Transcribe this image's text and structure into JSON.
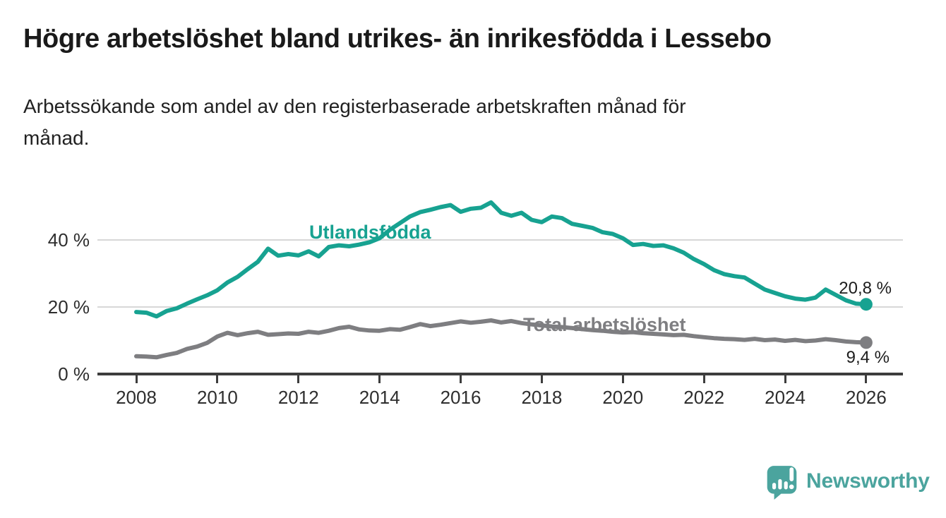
{
  "header": {
    "title": "Högre arbetslöshet bland utrikes- än inrikesfödda i Lessebo",
    "subtitle_line1": "Arbetssökande som andel av den registerbaserade arbetskraften månad för",
    "subtitle_line2": "månad."
  },
  "chart_data": {
    "type": "line",
    "title": "Högre arbetslöshet bland utrikes- än inrikesfödda i Lessebo",
    "subtitle": "Arbetssökande som andel av den registerbaserade arbetskraften månad för månad.",
    "xlabel": "",
    "ylabel": "",
    "x_unit": "year",
    "x_start": 2008,
    "x_step_years": 0.25,
    "xlim": [
      2007.0,
      2026.9
    ],
    "ylim": [
      0,
      52
    ],
    "grid": "horizontal",
    "legend_position": "inline-labels",
    "x_ticks": [
      "2008",
      "2010",
      "2012",
      "2014",
      "2016",
      "2018",
      "2020",
      "2022",
      "2024",
      "2026"
    ],
    "x_tick_years": [
      2008,
      2010,
      2012,
      2014,
      2016,
      2018,
      2020,
      2022,
      2024,
      2026
    ],
    "y_ticks": [
      "40 %",
      "20 %",
      "0 %"
    ],
    "y_tick_values": [
      40,
      20,
      0
    ],
    "series": [
      {
        "name": "Utlandsfödda",
        "color": "#17a291",
        "end_label": "20,8 %",
        "end_value": 20.8,
        "values": [
          18.5,
          18.3,
          17.2,
          18.8,
          19.6,
          21.0,
          22.3,
          23.5,
          25.0,
          27.3,
          29.0,
          31.3,
          33.5,
          37.4,
          35.3,
          35.8,
          35.4,
          36.6,
          35.1,
          37.9,
          38.4,
          38.1,
          38.6,
          39.3,
          40.5,
          43.0,
          45.0,
          47.0,
          48.3,
          49.0,
          49.8,
          50.4,
          48.4,
          49.3,
          49.6,
          51.2,
          48.1,
          47.2,
          48.1,
          46.0,
          45.3,
          47.0,
          46.5,
          44.8,
          44.2,
          43.6,
          42.3,
          41.8,
          40.5,
          38.5,
          38.8,
          38.2,
          38.4,
          37.5,
          36.2,
          34.3,
          32.8,
          31.0,
          29.8,
          29.2,
          28.8,
          27.0,
          25.2,
          24.2,
          23.2,
          22.5,
          22.2,
          22.8,
          25.2,
          23.6,
          22.0,
          21.0,
          20.8
        ]
      },
      {
        "name": "Total arbetslöshet",
        "color": "#7e7e81",
        "end_label": "9,4 %",
        "end_value": 9.4,
        "values": [
          5.3,
          5.2,
          5.0,
          5.7,
          6.3,
          7.5,
          8.2,
          9.3,
          11.2,
          12.3,
          11.6,
          12.2,
          12.6,
          11.7,
          11.9,
          12.1,
          12.0,
          12.6,
          12.3,
          12.9,
          13.7,
          14.1,
          13.3,
          13.0,
          12.9,
          13.4,
          13.2,
          14.0,
          14.9,
          14.3,
          14.7,
          15.2,
          15.7,
          15.3,
          15.6,
          16.0,
          15.4,
          15.8,
          15.2,
          14.8,
          14.5,
          14.2,
          14.0,
          13.7,
          13.4,
          13.1,
          12.9,
          12.6,
          12.4,
          12.5,
          12.2,
          12.0,
          11.8,
          11.6,
          11.7,
          11.3,
          11.0,
          10.7,
          10.5,
          10.4,
          10.2,
          10.5,
          10.1,
          10.3,
          9.9,
          10.2,
          9.8,
          10.0,
          10.4,
          10.1,
          9.7,
          9.5,
          9.4
        ]
      }
    ]
  },
  "footer": {
    "brand": "Newsworthy",
    "brand_color": "#4ba49e",
    "logo_icon": "speech-bubble-with-bar-chart-and-exclamation"
  }
}
